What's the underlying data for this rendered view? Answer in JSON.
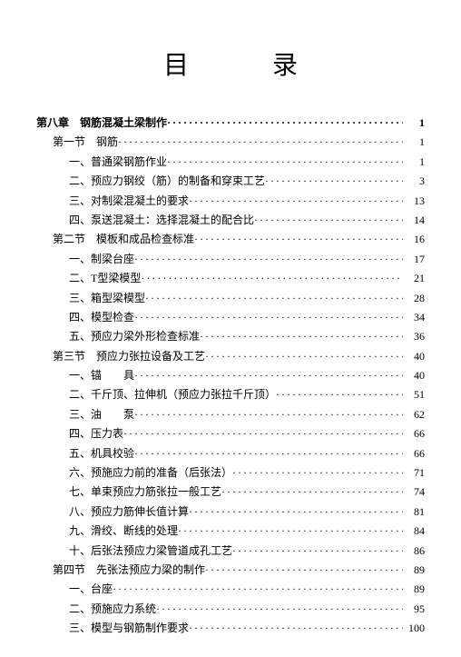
{
  "title": "目　录",
  "entries": [
    {
      "level": 0,
      "label": "第八章　钢筋混凝土梁制作",
      "page": "1"
    },
    {
      "level": 1,
      "label": "第一节　钢筋",
      "page": "1"
    },
    {
      "level": 2,
      "label": "一、普通梁钢筋作业",
      "page": "1"
    },
    {
      "level": 2,
      "label": "二、预应力钢绞（筋）的制备和穿束工艺",
      "page": "3"
    },
    {
      "level": 2,
      "label": "三、对制梁混凝土的要求",
      "page": "13"
    },
    {
      "level": 2,
      "label": "四、泵送混凝土：选择混凝土的配合比",
      "page": "14"
    },
    {
      "level": 1,
      "label": "第二节　模板和成品检查标准",
      "page": "16"
    },
    {
      "level": 2,
      "label": "一、制梁台座",
      "page": "17"
    },
    {
      "level": 2,
      "label": "二、T型梁模型",
      "page": "21"
    },
    {
      "level": 2,
      "label": "三、箱型梁模型",
      "page": "28"
    },
    {
      "level": 2,
      "label": "四、模型检查",
      "page": "34"
    },
    {
      "level": 2,
      "label": "五、预应力梁外形检查标准",
      "page": "36"
    },
    {
      "level": 1,
      "label": "第三节　预应力张拉设备及工艺",
      "page": "40"
    },
    {
      "level": 2,
      "label": "一、锚　　具",
      "page": "40"
    },
    {
      "level": 2,
      "label": "二、千斤顶、拉伸机（预应力张拉千斤顶）",
      "page": "51"
    },
    {
      "level": 2,
      "label": "三、油　　泵",
      "page": "62"
    },
    {
      "level": 2,
      "label": "四、压力表",
      "page": "66"
    },
    {
      "level": 2,
      "label": "五、机具校验",
      "page": "66"
    },
    {
      "level": 2,
      "label": "六、预施应力前的准备（后张法）",
      "page": "71"
    },
    {
      "level": 2,
      "label": "七、单束预应力筋张拉一般工艺",
      "page": "74"
    },
    {
      "level": 2,
      "label": "八、预应力筋伸长值计算",
      "page": "81"
    },
    {
      "level": 2,
      "label": "九、滑绞、断线的处理",
      "page": "84"
    },
    {
      "level": 2,
      "label": "十、后张法预应力梁管道成孔工艺",
      "page": "86"
    },
    {
      "level": 1,
      "label": "第四节　先张法预应力梁的制作",
      "page": "89"
    },
    {
      "level": 2,
      "label": "一、台座",
      "page": "89"
    },
    {
      "level": 2,
      "label": "二、预施应力系统",
      "page": "95"
    },
    {
      "level": 2,
      "label": "三、模型与钢筋制作要求",
      "page": "100"
    }
  ]
}
